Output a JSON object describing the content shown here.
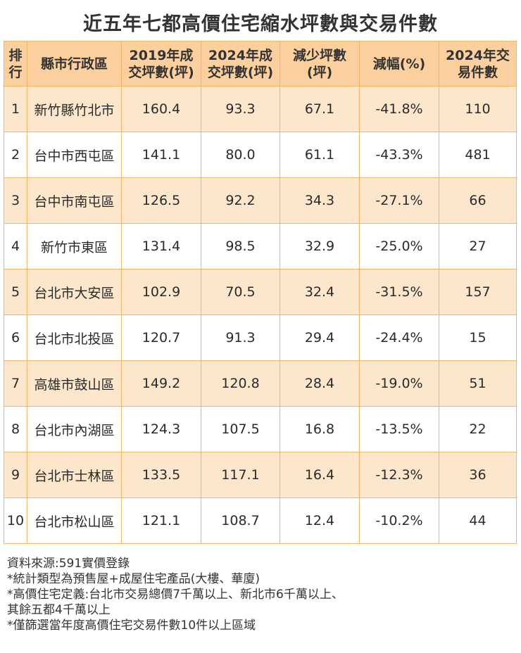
{
  "title": "近五年七都高價住宅縮水坪數與交易件數",
  "table": {
    "headers": [
      "排\n行",
      "縣市行政區",
      "2019年成\n交坪數(坪)",
      "2024年成\n交坪數(坪)",
      "減少坪數\n(坪)",
      "減幅(%)",
      "2024年交\n易件數"
    ],
    "rows": [
      {
        "rank": "1",
        "district": "新竹縣竹北市",
        "ping_2019": "160.4",
        "ping_2024": "93.3",
        "reduction": "67.1",
        "pct": "-41.8%",
        "deals_2024": "110"
      },
      {
        "rank": "2",
        "district": "台中市西屯區",
        "ping_2019": "141.1",
        "ping_2024": "80.0",
        "reduction": "61.1",
        "pct": "-43.3%",
        "deals_2024": "481"
      },
      {
        "rank": "3",
        "district": "台中市南屯區",
        "ping_2019": "126.5",
        "ping_2024": "92.2",
        "reduction": "34.3",
        "pct": "-27.1%",
        "deals_2024": "66"
      },
      {
        "rank": "4",
        "district": "新竹市東區",
        "ping_2019": "131.4",
        "ping_2024": "98.5",
        "reduction": "32.9",
        "pct": "-25.0%",
        "deals_2024": "27"
      },
      {
        "rank": "5",
        "district": "台北市大安區",
        "ping_2019": "102.9",
        "ping_2024": "70.5",
        "reduction": "32.4",
        "pct": "-31.5%",
        "deals_2024": "157"
      },
      {
        "rank": "6",
        "district": "台北市北投區",
        "ping_2019": "120.7",
        "ping_2024": "91.3",
        "reduction": "29.4",
        "pct": "-24.4%",
        "deals_2024": "15"
      },
      {
        "rank": "7",
        "district": "高雄市鼓山區",
        "ping_2019": "149.2",
        "ping_2024": "120.8",
        "reduction": "28.4",
        "pct": "-19.0%",
        "deals_2024": "51"
      },
      {
        "rank": "8",
        "district": "台北市內湖區",
        "ping_2019": "124.3",
        "ping_2024": "107.5",
        "reduction": "16.8",
        "pct": "-13.5%",
        "deals_2024": "22"
      },
      {
        "rank": "9",
        "district": "台北市士林區",
        "ping_2019": "133.5",
        "ping_2024": "117.1",
        "reduction": "16.4",
        "pct": "-12.3%",
        "deals_2024": "36"
      },
      {
        "rank": "10",
        "district": "台北市松山區",
        "ping_2019": "121.1",
        "ping_2024": "108.7",
        "reduction": "12.4",
        "pct": "-10.2%",
        "deals_2024": "44"
      }
    ]
  },
  "notes": [
    "資料來源:591實價登錄",
    "*統計類型為預售屋+成屋住宅產品(大樓、華廈)",
    "*高價住宅定義:台北市交易總價7千萬以上、新北市6千萬以上、",
    "其餘五都4千萬以上",
    "*僅篩選當年度高價住宅交易件數10件以上區域"
  ],
  "colors": {
    "header_bg": "#fcd09e",
    "odd_row_bg": "#fde7cc",
    "even_row_bg": "#ffffff",
    "border": "#f0b66a"
  }
}
